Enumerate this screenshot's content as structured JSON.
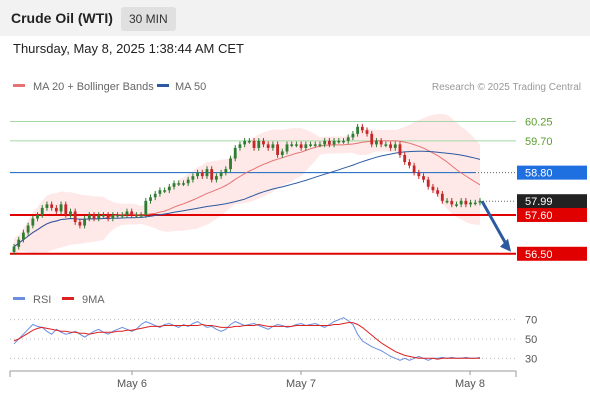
{
  "header": {
    "title": "Crude Oil (WTI)",
    "interval": "30 MIN"
  },
  "timestamp": "Thursday, May 8, 2025 1:38:44 AM CET",
  "legend": {
    "ma20_bb": "MA 20 + Bollinger Bands",
    "ma50": "MA 50",
    "rsi": "RSI",
    "rsi_ma": "9MA"
  },
  "credit": "Research © 2025 Trading Central",
  "colors": {
    "candle_up": "#2e7d32",
    "candle_down": "#c62828",
    "ma20": "#e57373",
    "bollinger": "#fde0e0",
    "ma50": "#2c5aa0",
    "resistance": "#a5d6a7",
    "pivot": "#1565c0",
    "support": "#e00000",
    "current": "#222222",
    "rsi": "#6a8fe0",
    "rsi_ma": "#dd2222",
    "arrow": "#2c5aa0"
  },
  "chart_data": [
    {
      "type": "candlestick",
      "title": "Crude Oil (WTI)",
      "interval": "30 MIN",
      "x_ticks": [
        "May 6",
        "May 7",
        "May 8"
      ],
      "ylim": [
        55.7,
        61.0
      ],
      "closes": [
        56.7,
        56.9,
        57.1,
        57.3,
        57.5,
        57.6,
        57.8,
        57.9,
        57.8,
        57.7,
        57.9,
        57.6,
        57.7,
        57.4,
        57.3,
        57.5,
        57.6,
        57.5,
        57.6,
        57.6,
        57.5,
        57.6,
        57.6,
        57.6,
        57.7,
        57.6,
        57.6,
        57.6,
        58.0,
        58.1,
        58.2,
        58.3,
        58.3,
        58.4,
        58.5,
        58.5,
        58.5,
        58.6,
        58.7,
        58.8,
        58.7,
        58.9,
        58.6,
        58.7,
        58.8,
        58.9,
        59.2,
        59.5,
        59.6,
        59.7,
        59.7,
        59.5,
        59.7,
        59.6,
        59.5,
        59.6,
        59.3,
        59.4,
        59.6,
        59.6,
        59.6,
        59.5,
        59.6,
        59.6,
        59.6,
        59.6,
        59.7,
        59.6,
        59.7,
        59.7,
        59.7,
        59.8,
        59.9,
        60.1,
        60.0,
        59.9,
        59.6,
        59.7,
        59.6,
        59.6,
        59.5,
        59.6,
        59.3,
        59.1,
        59.0,
        58.8,
        58.7,
        58.6,
        58.4,
        58.3,
        58.2,
        58.0,
        58.0,
        57.9,
        57.9,
        58.0,
        57.9,
        57.95,
        57.95,
        58.0
      ],
      "levels": [
        {
          "value": 60.25,
          "label": "60.25",
          "kind": "resistance"
        },
        {
          "value": 59.7,
          "label": "59.70",
          "kind": "resistance"
        },
        {
          "value": 58.8,
          "label": "58.80",
          "kind": "pivot"
        },
        {
          "value": 57.99,
          "label": "57.99",
          "kind": "last price"
        },
        {
          "value": 57.6,
          "label": "57.60",
          "kind": "support"
        },
        {
          "value": 56.5,
          "label": "56.50",
          "kind": "support"
        }
      ],
      "forecast": {
        "from": 57.99,
        "to": 56.5
      }
    },
    {
      "type": "line",
      "series": [
        {
          "name": "RSI"
        },
        {
          "name": "9MA"
        }
      ],
      "ylim": [
        20,
        80
      ],
      "y_ticks": [
        70,
        50,
        30
      ],
      "rsi": [
        45,
        50,
        55,
        60,
        65,
        63,
        62,
        58,
        55,
        60,
        57,
        55,
        56,
        58,
        55,
        52,
        55,
        58,
        60,
        57,
        55,
        58,
        60,
        62,
        60,
        58,
        60,
        65,
        68,
        66,
        64,
        62,
        65,
        66,
        64,
        62,
        65,
        63,
        66,
        68,
        65,
        62,
        63,
        60,
        58,
        60,
        65,
        68,
        66,
        64,
        65,
        66,
        64,
        62,
        60,
        63,
        65,
        64,
        62,
        63,
        65,
        66,
        64,
        65,
        66,
        64,
        62,
        65,
        68,
        70,
        72,
        69,
        65,
        55,
        48,
        45,
        42,
        40,
        38,
        35,
        32,
        30,
        28,
        30,
        28,
        30,
        32,
        30,
        28,
        30,
        30,
        31,
        30,
        31,
        30,
        30,
        31,
        30,
        30,
        31
      ],
      "ma9": [
        48,
        50,
        53,
        56,
        59,
        61,
        62,
        61,
        60,
        59,
        58,
        58,
        57,
        57,
        56,
        56,
        55,
        56,
        57,
        57,
        57,
        57,
        58,
        58,
        59,
        59,
        60,
        61,
        62,
        63,
        63,
        63,
        64,
        64,
        64,
        64,
        64,
        64,
        64,
        64,
        65,
        64,
        64,
        63,
        62,
        62,
        62,
        63,
        63,
        64,
        64,
        64,
        65,
        64,
        63,
        63,
        63,
        63,
        63,
        63,
        64,
        64,
        64,
        64,
        64,
        64,
        64,
        64,
        65,
        65,
        66,
        67,
        67,
        65,
        62,
        58,
        54,
        50,
        46,
        43,
        40,
        37,
        35,
        33,
        32,
        31,
        30,
        30,
        30,
        30,
        29,
        30,
        30,
        30,
        30,
        30,
        30,
        30,
        30,
        30
      ]
    }
  ]
}
